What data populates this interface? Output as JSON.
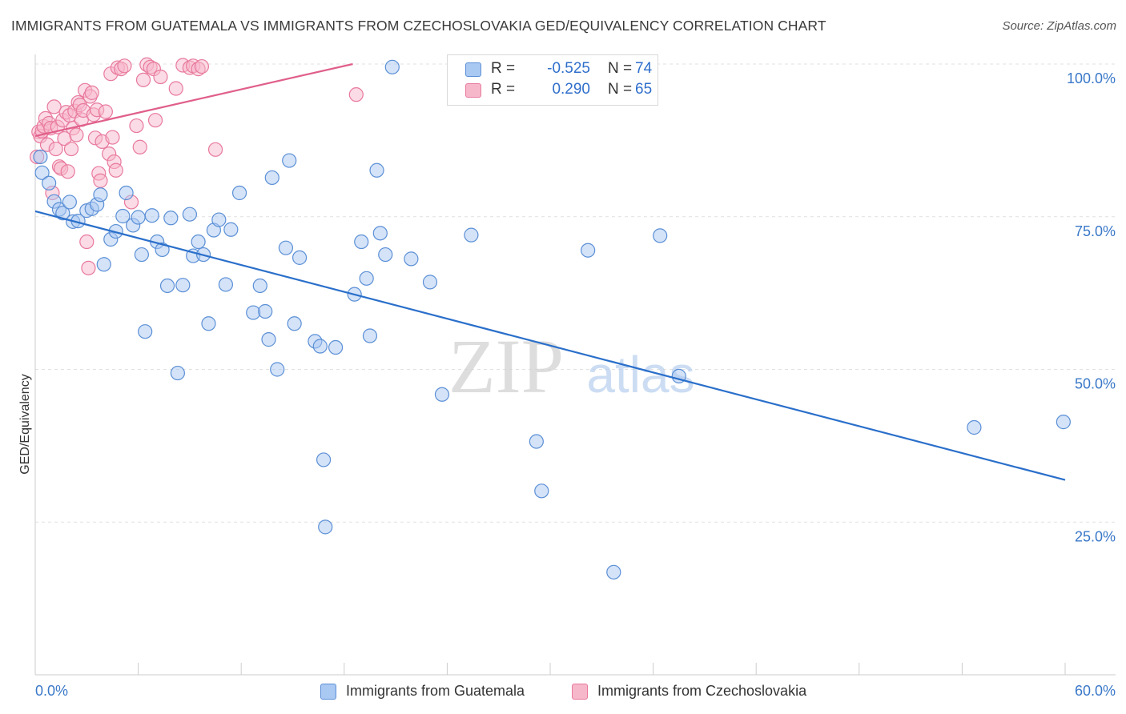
{
  "title": "IMMIGRANTS FROM GUATEMALA VS IMMIGRANTS FROM CZECHOSLOVAKIA GED/EQUIVALENCY CORRELATION CHART",
  "source": "Source: ZipAtlas.com",
  "watermark": {
    "zip": "ZIP",
    "atlas": "atlas"
  },
  "legend": {
    "series1": {
      "r_label": "R =",
      "r_value": "-0.525",
      "n_label": "N =",
      "n_value": "74"
    },
    "series2": {
      "r_label": "R =",
      "r_value": "0.290",
      "n_label": "N =",
      "n_value": "65"
    }
  },
  "colors": {
    "guatemala_fill": "#a9c8f2",
    "guatemala_stroke": "#5b8fd6",
    "guatemala_line": "#2a6fca",
    "czech_fill": "#f7b7cb",
    "czech_stroke": "#e8799d",
    "czech_line": "#e05f8a",
    "grid": "#e1e1e1",
    "tick_label": "#3a78c8"
  },
  "chart_data": {
    "type": "scatter",
    "xlabel": "",
    "ylabel": "GED/Equivalency",
    "xlim": [
      0,
      60
    ],
    "ylim": [
      0,
      100
    ],
    "x_tick_labels": [
      {
        "x": 0,
        "label": "0.0%"
      },
      {
        "x": 60,
        "label": "60.0%"
      }
    ],
    "y_tick_labels": [
      {
        "y": 100,
        "label": "100.0%"
      },
      {
        "y": 75,
        "label": "75.0%"
      },
      {
        "y": 50,
        "label": "50.0%"
      },
      {
        "y": 25,
        "label": "25.0%"
      }
    ],
    "y_gridlines": [
      100,
      75,
      50,
      25
    ],
    "legend_position": "top-center",
    "series": [
      {
        "name": "Immigrants from Guatemala",
        "trend": {
          "x": [
            0,
            60
          ],
          "y": [
            75.9,
            31.9
          ]
        },
        "points": [
          [
            0.3,
            84.8
          ],
          [
            0.4,
            82.2
          ],
          [
            0.8,
            80.5
          ],
          [
            1.1,
            77.5
          ],
          [
            1.4,
            76.2
          ],
          [
            1.6,
            75.6
          ],
          [
            2.0,
            77.4
          ],
          [
            2.2,
            74.2
          ],
          [
            2.5,
            74.3
          ],
          [
            3.0,
            76.0
          ],
          [
            3.3,
            76.3
          ],
          [
            3.6,
            77.0
          ],
          [
            3.8,
            78.6
          ],
          [
            4.0,
            67.2
          ],
          [
            4.4,
            71.3
          ],
          [
            4.7,
            72.6
          ],
          [
            5.1,
            75.1
          ],
          [
            5.3,
            78.9
          ],
          [
            5.7,
            73.6
          ],
          [
            6.0,
            74.9
          ],
          [
            6.2,
            68.8
          ],
          [
            6.4,
            56.2
          ],
          [
            6.8,
            75.2
          ],
          [
            7.1,
            70.9
          ],
          [
            7.4,
            69.6
          ],
          [
            7.7,
            63.7
          ],
          [
            7.9,
            74.8
          ],
          [
            8.3,
            49.4
          ],
          [
            8.6,
            63.8
          ],
          [
            9.0,
            75.4
          ],
          [
            9.2,
            68.6
          ],
          [
            9.5,
            70.9
          ],
          [
            9.8,
            68.8
          ],
          [
            10.1,
            57.5
          ],
          [
            10.4,
            72.8
          ],
          [
            10.7,
            74.5
          ],
          [
            11.1,
            63.9
          ],
          [
            11.4,
            72.9
          ],
          [
            11.9,
            78.9
          ],
          [
            12.7,
            59.3
          ],
          [
            13.1,
            63.7
          ],
          [
            13.4,
            59.5
          ],
          [
            13.6,
            54.9
          ],
          [
            13.8,
            81.4
          ],
          [
            14.1,
            50.0
          ],
          [
            14.6,
            69.9
          ],
          [
            14.8,
            84.2
          ],
          [
            15.1,
            57.5
          ],
          [
            15.4,
            68.3
          ],
          [
            16.3,
            54.6
          ],
          [
            16.6,
            53.8
          ],
          [
            16.8,
            35.2
          ],
          [
            16.9,
            24.2
          ],
          [
            17.5,
            53.6
          ],
          [
            18.6,
            62.3
          ],
          [
            19.0,
            70.9
          ],
          [
            19.3,
            64.9
          ],
          [
            19.5,
            55.5
          ],
          [
            19.9,
            82.6
          ],
          [
            20.1,
            72.3
          ],
          [
            20.4,
            68.8
          ],
          [
            20.8,
            99.5
          ],
          [
            21.9,
            68.1
          ],
          [
            23.0,
            64.3
          ],
          [
            23.7,
            45.9
          ],
          [
            25.4,
            72.0
          ],
          [
            29.2,
            38.2
          ],
          [
            29.5,
            30.1
          ],
          [
            32.2,
            69.5
          ],
          [
            33.7,
            16.8
          ],
          [
            36.4,
            71.9
          ],
          [
            37.5,
            48.9
          ],
          [
            54.7,
            40.5
          ],
          [
            59.9,
            41.4
          ]
        ]
      },
      {
        "name": "Immigrants from Czechoslovakia",
        "trend": {
          "x": [
            0,
            18.5
          ],
          "y": [
            88.2,
            100
          ]
        },
        "points": [
          [
            0.1,
            84.8
          ],
          [
            0.2,
            88.9
          ],
          [
            0.3,
            88.2
          ],
          [
            0.4,
            89.0
          ],
          [
            0.5,
            89.8
          ],
          [
            0.6,
            91.1
          ],
          [
            0.7,
            86.8
          ],
          [
            0.8,
            90.3
          ],
          [
            0.9,
            89.5
          ],
          [
            1.0,
            78.9
          ],
          [
            1.1,
            93.0
          ],
          [
            1.2,
            86.1
          ],
          [
            1.3,
            89.7
          ],
          [
            1.4,
            83.2
          ],
          [
            1.5,
            82.9
          ],
          [
            1.6,
            90.8
          ],
          [
            1.7,
            87.8
          ],
          [
            1.8,
            92.1
          ],
          [
            1.9,
            82.4
          ],
          [
            2.0,
            91.6
          ],
          [
            2.1,
            86.1
          ],
          [
            2.2,
            89.5
          ],
          [
            2.3,
            92.3
          ],
          [
            2.4,
            88.4
          ],
          [
            2.5,
            93.7
          ],
          [
            2.6,
            93.3
          ],
          [
            2.7,
            90.9
          ],
          [
            2.8,
            92.4
          ],
          [
            2.9,
            95.7
          ],
          [
            3.0,
            70.9
          ],
          [
            3.1,
            66.6
          ],
          [
            3.2,
            94.7
          ],
          [
            3.3,
            95.3
          ],
          [
            3.4,
            91.7
          ],
          [
            3.5,
            87.9
          ],
          [
            3.6,
            92.5
          ],
          [
            3.7,
            82.1
          ],
          [
            3.8,
            80.9
          ],
          [
            3.9,
            87.3
          ],
          [
            4.1,
            92.2
          ],
          [
            4.3,
            85.3
          ],
          [
            4.4,
            98.4
          ],
          [
            4.5,
            88.0
          ],
          [
            4.6,
            84.0
          ],
          [
            4.7,
            82.6
          ],
          [
            4.8,
            99.4
          ],
          [
            5.0,
            99.2
          ],
          [
            5.2,
            99.7
          ],
          [
            5.6,
            77.4
          ],
          [
            5.9,
            89.9
          ],
          [
            6.1,
            86.4
          ],
          [
            6.3,
            97.4
          ],
          [
            6.5,
            99.9
          ],
          [
            6.7,
            99.5
          ],
          [
            6.9,
            99.2
          ],
          [
            7.0,
            90.8
          ],
          [
            7.3,
            97.9
          ],
          [
            8.2,
            96.0
          ],
          [
            8.6,
            99.8
          ],
          [
            9.0,
            99.4
          ],
          [
            9.2,
            99.7
          ],
          [
            9.5,
            99.2
          ],
          [
            9.7,
            99.6
          ],
          [
            10.5,
            86.0
          ],
          [
            18.7,
            95.0
          ]
        ]
      }
    ]
  },
  "bottom_legend": {
    "series1_label": "Immigrants from Guatemala",
    "series2_label": "Immigrants from Czechoslovakia"
  }
}
